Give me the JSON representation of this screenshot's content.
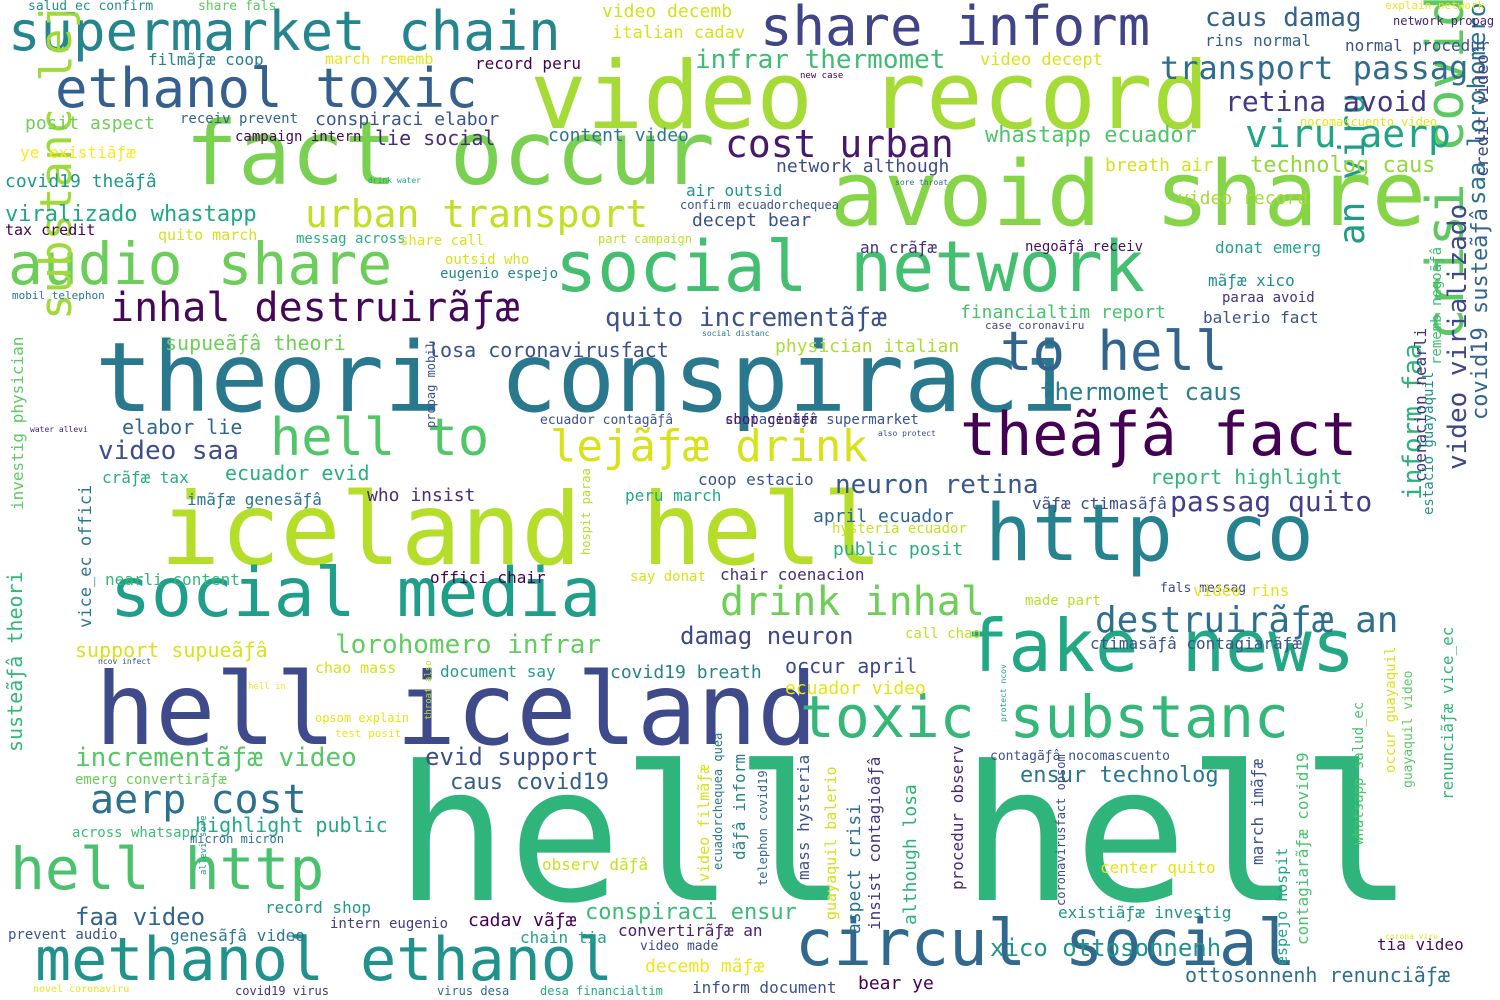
{
  "words": [
    {
      "text": "hell hell",
      "color": "#2fb47c"
    },
    {
      "text": "iceland hell",
      "color": "#b5de2b"
    },
    {
      "text": "hell iceland",
      "color": "#3e4a89"
    },
    {
      "text": "theori conspiraci",
      "color": "#2a788e"
    },
    {
      "text": "video record",
      "color": "#a5db36"
    },
    {
      "text": "avoid share",
      "color": "#86d549"
    },
    {
      "text": "fact occur",
      "color": "#7ad151"
    },
    {
      "text": "social network",
      "color": "#44bf70"
    },
    {
      "text": "social media",
      "color": "#1f9e89"
    },
    {
      "text": "http co",
      "color": "#26828e"
    },
    {
      "text": "fake news",
      "color": "#22a884"
    },
    {
      "text": "circul social",
      "color": "#31688e"
    },
    {
      "text": "methanol ethanol",
      "color": "#21918c"
    },
    {
      "text": "supermarket chain",
      "color": "#25858e"
    },
    {
      "text": "share inform",
      "color": "#414487"
    },
    {
      "text": "ethanol toxic",
      "color": "#355f8d"
    },
    {
      "text": "audio share",
      "color": "#6ccd5a"
    },
    {
      "text": "theãƒâ fact",
      "color": "#440154"
    },
    {
      "text": "hell to",
      "color": "#52c569"
    },
    {
      "text": "to hell",
      "color": "#32658e"
    },
    {
      "text": "toxic substanc",
      "color": "#35b779"
    },
    {
      "text": "hell http",
      "color": "#4ac16d"
    },
    {
      "text": "crisi covid19",
      "color": "#5ec962"
    },
    {
      "text": "substanc lejãƒæ",
      "color": "#9fda3a"
    },
    {
      "text": "lejãƒæ drink",
      "color": "#d8e219"
    },
    {
      "text": "drink inhal",
      "color": "#6ece58"
    },
    {
      "text": "inhal destruirãƒæ",
      "color": "#46075a"
    },
    {
      "text": "urban transport",
      "color": "#c2df23"
    },
    {
      "text": "cost urban",
      "color": "#48186a"
    },
    {
      "text": "aerp cost",
      "color": "#2d718e"
    },
    {
      "text": "viru aerp",
      "color": "#20a486"
    },
    {
      "text": "an viru",
      "color": "#1e9c89"
    },
    {
      "text": "destruirãƒæ an",
      "color": "#2e6e8e"
    },
    {
      "text": "transport passag",
      "color": "#2f6c8e"
    },
    {
      "text": "retina avoid",
      "color": "#453882"
    },
    {
      "text": "caus damag",
      "color": "#34618d"
    },
    {
      "text": "infrar thermomet",
      "color": "#3dbc74"
    },
    {
      "text": "whastapp ecuador",
      "color": "#4fc46a"
    },
    {
      "text": "technolog caus",
      "color": "#94d840"
    },
    {
      "text": "video virializado",
      "color": "#3f4788"
    },
    {
      "text": "saa lorohomero",
      "color": "#2c728e"
    },
    {
      "text": "covid19 susteãƒâ",
      "color": "#32648e"
    },
    {
      "text": "credit video",
      "color": "#424086"
    },
    {
      "text": "quito incrementãƒæ",
      "color": "#3b528b"
    },
    {
      "text": "lorohomero infrar",
      "color": "#63cb5f"
    },
    {
      "text": "incrementãƒæ video",
      "color": "#56c667"
    },
    {
      "text": "damag neuron",
      "color": "#3f4889"
    },
    {
      "text": "neuron retina",
      "color": "#38588c"
    },
    {
      "text": "passag quito",
      "color": "#433e85"
    },
    {
      "text": "thermomet caus",
      "color": "#287d8e"
    },
    {
      "text": "report highlight",
      "color": "#34b679"
    },
    {
      "text": "evid support",
      "color": "#3c4f8a"
    },
    {
      "text": "caus covid19",
      "color": "#355e8d"
    },
    {
      "text": "faa video",
      "color": "#33638d"
    },
    {
      "text": "highlight public",
      "color": "#23a983"
    },
    {
      "text": "conspiraci ensur",
      "color": "#3bbb75"
    },
    {
      "text": "ensur technolog",
      "color": "#2a768e"
    },
    {
      "text": "xico ottosonnenh",
      "color": "#20938c"
    },
    {
      "text": "ottosonnenh renunciãƒæ",
      "color": "#2e6f8e"
    },
    {
      "text": "inform faa",
      "color": "#2db27d"
    },
    {
      "text": "video record ",
      "color": "#a5db36"
    },
    {
      "text": "viralizado whastapp",
      "color": "#22a785"
    },
    {
      "text": "covid19 theãƒâ",
      "color": "#1f9a8a"
    },
    {
      "text": "posit aspect",
      "color": "#6ece58"
    },
    {
      "text": "ye existiãƒæ",
      "color": "#fde725"
    },
    {
      "text": "filmãƒæ coop",
      "color": "#27808e"
    },
    {
      "text": "march rememb",
      "color": "#e5e419"
    },
    {
      "text": "record peru",
      "color": "#440154"
    },
    {
      "text": "receiv prevent",
      "color": "#31678e"
    },
    {
      "text": "conspiraci elabor",
      "color": "#39568c"
    },
    {
      "text": "campaign intern",
      "color": "#46085c"
    },
    {
      "text": "lie social",
      "color": "#472c7a"
    },
    {
      "text": "content video",
      "color": "#2a788e"
    },
    {
      "text": "network although",
      "color": "#3e4c8a"
    },
    {
      "text": "breath air",
      "color": "#d5e21a"
    },
    {
      "text": "air outsid",
      "color": "#1f958b"
    },
    {
      "text": "confirm ecuadorchequea",
      "color": "#3a548c"
    },
    {
      "text": "decept bear",
      "color": "#3b518b"
    },
    {
      "text": "tax credit",
      "color": "#440154"
    },
    {
      "text": "quito march",
      "color": "#d2e21b"
    },
    {
      "text": "messag across",
      "color": "#2ab07f"
    },
    {
      "text": "share call",
      "color": "#dde318"
    },
    {
      "text": "part campaign",
      "color": "#bddf26"
    },
    {
      "text": "outsid who",
      "color": "#d5e21a"
    },
    {
      "text": "eugenio espejo",
      "color": "#24868e"
    },
    {
      "text": "an crãƒæ",
      "color": "#46307e"
    },
    {
      "text": "negoãƒâ receiv",
      "color": "#471063"
    },
    {
      "text": "donat emerg",
      "color": "#20a386"
    },
    {
      "text": "mãƒæ xico",
      "color": "#218f8d"
    },
    {
      "text": "paraa avoid",
      "color": "#46327e"
    },
    {
      "text": "balerio fact",
      "color": "#3b528b"
    },
    {
      "text": "financialtim report",
      "color": "#4ac16d"
    },
    {
      "text": "case coronaviru",
      "color": "#404588"
    },
    {
      "text": "mobil telephon",
      "color": "#2a778e"
    },
    {
      "text": "supueãƒâ theori",
      "color": "#6ece58"
    },
    {
      "text": "losa coronavirusfact",
      "color": "#3c508b"
    },
    {
      "text": "physician italian",
      "color": "#addc30"
    },
    {
      "text": "elabor lie",
      "color": "#31678e"
    },
    {
      "text": "video saa",
      "color": "#3d4d8a"
    },
    {
      "text": "ecuador evid",
      "color": "#29af7f"
    },
    {
      "text": "ecuador contagãƒâ",
      "color": "#3b528b"
    },
    {
      "text": "contagioãƒâ supermarket",
      "color": "#3a548c"
    },
    {
      "text": "shop center",
      "color": "#481a6c"
    },
    {
      "text": "coop estacio",
      "color": "#3b528b"
    },
    {
      "text": "crãƒæ tax",
      "color": "#27ad81"
    },
    {
      "text": "imãƒæ genesãƒâ",
      "color": "#2c738e"
    },
    {
      "text": "who insist",
      "color": "#472d7b"
    },
    {
      "text": "peru march",
      "color": "#22a884"
    },
    {
      "text": "vãƒæ ctimasãƒâ",
      "color": "#3d4d8a"
    },
    {
      "text": "april ecuador",
      "color": "#32658e"
    },
    {
      "text": "public posit",
      "color": "#29af7f"
    },
    {
      "text": "hysteria ecuador",
      "color": "#c8e020"
    },
    {
      "text": "nearli content",
      "color": "#35b779"
    },
    {
      "text": "offici chair",
      "color": "#440154"
    },
    {
      "text": "say donat",
      "color": "#d8e219"
    },
    {
      "text": "chair coenacion",
      "color": "#472f7d"
    },
    {
      "text": "fals messag",
      "color": "#3e4a89"
    },
    {
      "text": "video rins",
      "color": "#e2e418"
    },
    {
      "text": "made part",
      "color": "#b8de29"
    },
    {
      "text": "support supueãƒâ",
      "color": "#dae319"
    },
    {
      "text": "call chao",
      "color": "#c2df23"
    },
    {
      "text": "ctimasãƒâ contagiarãƒæ",
      "color": "#3b528b"
    },
    {
      "text": "chao mass",
      "color": "#d2e21b"
    },
    {
      "text": "document say",
      "color": "#1f9e89"
    },
    {
      "text": "covid19 breath",
      "color": "#26828e"
    },
    {
      "text": "occur april",
      "color": "#3e4989"
    },
    {
      "text": "ecuador video",
      "color": "#e5e419"
    },
    {
      "text": "opsom explain",
      "color": "#e7e419"
    },
    {
      "text": "test posit",
      "color": "#efe51c"
    },
    {
      "text": "emerg convertirãƒæ",
      "color": "#6ccd5a"
    },
    {
      "text": "across whatsapp",
      "color": "#3bbb75"
    },
    {
      "text": "micron micron",
      "color": "#2c718e"
    },
    {
      "text": "contagãƒâ nocomascuento",
      "color": "#3b528b"
    },
    {
      "text": "observ dãƒâ",
      "color": "#c8e020"
    },
    {
      "text": "center quito",
      "color": "#e5e419"
    },
    {
      "text": "record shop",
      "color": "#1f988b"
    },
    {
      "text": "genesãƒâ video",
      "color": "#2a788e"
    },
    {
      "text": "intern eugenio",
      "color": "#433d84"
    },
    {
      "text": "cadav vãƒæ",
      "color": "#440154"
    },
    {
      "text": "chain tia",
      "color": "#20a386"
    },
    {
      "text": "convertirãƒæ an",
      "color": "#482173"
    },
    {
      "text": "video made",
      "color": "#3e4a89"
    },
    {
      "text": "decemb mãƒæ",
      "color": "#efe51c"
    },
    {
      "text": "existiãƒæ investig",
      "color": "#20938c"
    },
    {
      "text": "tia video",
      "color": "#460a5d"
    },
    {
      "text": "prevent audio",
      "color": "#3b528b"
    },
    {
      "text": "covid19 virus",
      "color": "#46327e"
    },
    {
      "text": "virus desa",
      "color": "#31688e"
    },
    {
      "text": "desa financialtim",
      "color": "#25ab82"
    },
    {
      "text": "inform document",
      "color": "#3a538b"
    },
    {
      "text": "bear ye",
      "color": "#440154"
    },
    {
      "text": "novel coronaviru",
      "color": "#e7e419"
    },
    {
      "text": "salud_ec confirm",
      "color": "#21918c"
    },
    {
      "text": "share fals",
      "color": "#5ec962"
    },
    {
      "text": "video decemb",
      "color": "#d2e21b"
    },
    {
      "text": "italian cadav",
      "color": "#d8e219"
    },
    {
      "text": "explain network",
      "color": "#efe51c"
    },
    {
      "text": "network propag",
      "color": "#482475"
    },
    {
      "text": "rins normal",
      "color": "#33638d"
    },
    {
      "text": "normal procedur",
      "color": "#3b528b"
    },
    {
      "text": "new case",
      "color": "#440154"
    },
    {
      "text": "video decept",
      "color": "#dae319"
    },
    {
      "text": "nocomascuento video",
      "color": "#e5e419"
    },
    {
      "text": "drink water",
      "color": "#20a386"
    },
    {
      "text": "sore throat",
      "color": "#2c728e"
    },
    {
      "text": "social distanc",
      "color": "#2a788e"
    },
    {
      "text": "water allevi",
      "color": "#482576"
    },
    {
      "text": "also protect",
      "color": "#3d4d8a"
    },
    {
      "text": "ncov infect",
      "color": "#3a548c"
    },
    {
      "text": "hell in",
      "color": "#efe51c"
    },
    {
      "text": "vice_ec offici",
      "color": "#2a788e"
    },
    {
      "text": "susteãƒâ theori",
      "color": "#35b779"
    },
    {
      "text": "investig physician",
      "color": "#5ec962"
    },
    {
      "text": "propag mobil",
      "color": "#3b528b"
    },
    {
      "text": "hospit paraa",
      "color": "#b8de29"
    },
    {
      "text": "throat also",
      "color": "#bddf26"
    },
    {
      "text": "allevi sore",
      "color": "#1f958b"
    },
    {
      "text": "protect ncov",
      "color": "#1fa088"
    },
    {
      "text": "video filmãƒæ",
      "color": "#d8e219"
    },
    {
      "text": "ecuadorchequea quea",
      "color": "#2a788e"
    },
    {
      "text": "dãƒâ inform",
      "color": "#26828e"
    },
    {
      "text": "telephon covid19",
      "color": "#31688e"
    },
    {
      "text": "mass hysteria",
      "color": "#3b528b"
    },
    {
      "text": "guayaquil balerio",
      "color": "#d2e21b"
    },
    {
      "text": "aspect crisi",
      "color": "#2c728e"
    },
    {
      "text": "insist contagioãƒâ",
      "color": "#46337f"
    },
    {
      "text": "although losa",
      "color": "#2db27d"
    },
    {
      "text": "procedur observ",
      "color": "#472a7a"
    },
    {
      "text": "espejo hospit",
      "color": "#21a585"
    },
    {
      "text": "coronavirusfact opsom",
      "color": "#3e4a89"
    },
    {
      "text": "contagiarãƒæ covid19",
      "color": "#4ac16d"
    },
    {
      "text": "renunciãƒæ vice_ec",
      "color": "#33b67a"
    },
    {
      "text": "march imãƒæ",
      "color": "#3b528b"
    },
    {
      "text": "whatsapp salud_ec",
      "color": "#4ac16d"
    },
    {
      "text": "occur guayaquil",
      "color": "#dae319"
    },
    {
      "text": "guayaquil video",
      "color": "#5ec962"
    },
    {
      "text": "coenacion nearli",
      "color": "#46307e"
    },
    {
      "text": "estacio guayaquil",
      "color": "#21918c"
    },
    {
      "text": "rememb negoãƒâ",
      "color": "#3dbc74"
    },
    {
      "text": "corona viru",
      "color": "#e2e418"
    }
  ]
}
